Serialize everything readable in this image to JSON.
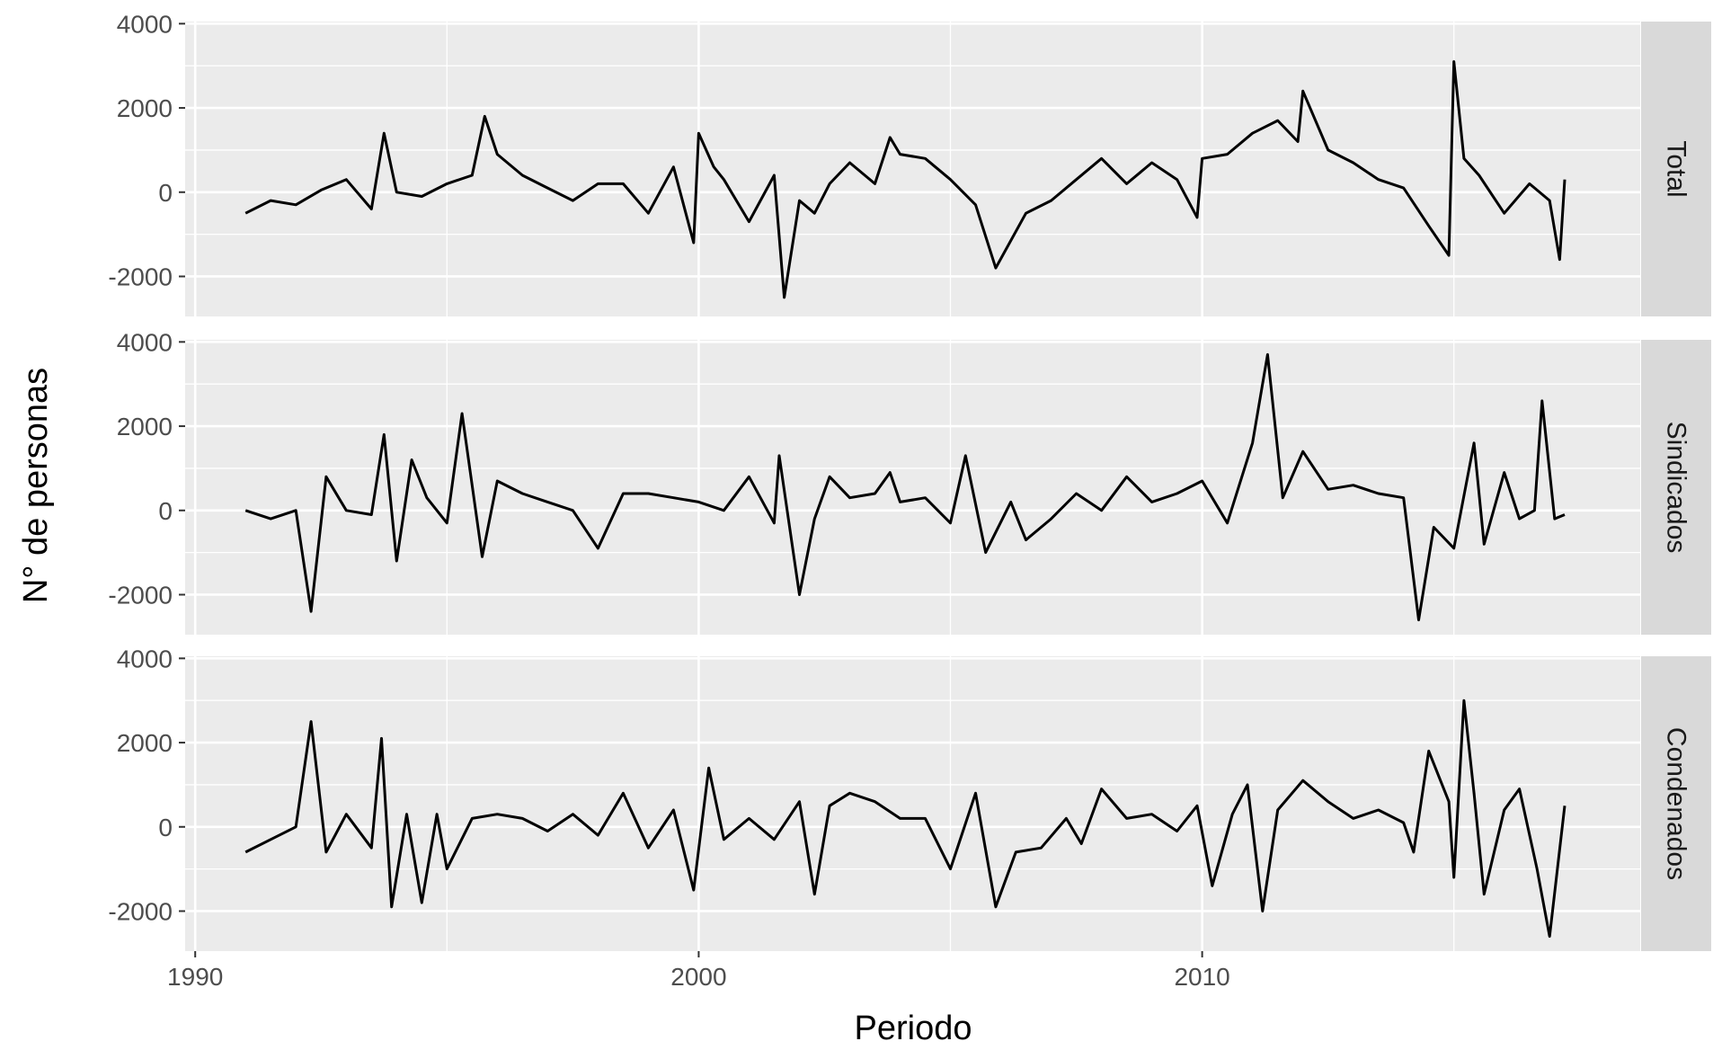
{
  "chart_data": {
    "type": "line",
    "title": "",
    "xlabel": "Periodo",
    "ylabel": "N° de personas",
    "xlim": [
      1989.8,
      2018.7
    ],
    "ylim": [
      -2950,
      4050
    ],
    "x_ticks": [
      1990,
      2000,
      2010
    ],
    "y_ticks": [
      -2000,
      0,
      2000,
      4000
    ],
    "grid": true,
    "legend": "none",
    "line_color": "#000000",
    "panel_background": "#ebebeb",
    "strip_background": "#d9d9d9",
    "panels": [
      {
        "strip_label": "Total",
        "x": [
          1991.0,
          1991.5,
          1992.0,
          1992.5,
          1993.0,
          1993.5,
          1993.75,
          1994.0,
          1994.5,
          1995.0,
          1995.5,
          1995.75,
          1996.0,
          1996.5,
          1997.0,
          1997.5,
          1998.0,
          1998.5,
          1999.0,
          1999.5,
          1999.9,
          2000.0,
          2000.3,
          2000.5,
          2001.0,
          2001.5,
          2001.7,
          2002.0,
          2002.3,
          2002.6,
          2003.0,
          2003.5,
          2003.8,
          2004.0,
          2004.5,
          2005.0,
          2005.5,
          2005.9,
          2006.5,
          2007.0,
          2007.5,
          2008.0,
          2008.5,
          2009.0,
          2009.5,
          2009.9,
          2010.0,
          2010.5,
          2011.0,
          2011.5,
          2011.9,
          2012.0,
          2012.5,
          2013.0,
          2013.5,
          2014.0,
          2014.5,
          2014.9,
          2015.0,
          2015.2,
          2015.5,
          2016.0,
          2016.5,
          2016.9,
          2017.1,
          2017.2
        ],
        "y": [
          -500,
          -200,
          -300,
          50,
          300,
          -400,
          1400,
          0,
          -100,
          200,
          400,
          1800,
          900,
          400,
          100,
          -200,
          200,
          200,
          -500,
          600,
          -1200,
          1400,
          600,
          300,
          -700,
          400,
          -2500,
          -200,
          -500,
          200,
          700,
          200,
          1300,
          900,
          800,
          300,
          -300,
          -1800,
          -500,
          -200,
          300,
          800,
          200,
          700,
          300,
          -600,
          800,
          900,
          1400,
          1700,
          1200,
          2400,
          1000,
          700,
          300,
          100,
          -800,
          -1500,
          3100,
          800,
          400,
          -500,
          200,
          -200,
          -1600,
          300
        ]
      },
      {
        "strip_label": "Sindicados",
        "x": [
          1991.0,
          1991.5,
          1992.0,
          1992.3,
          1992.6,
          1993.0,
          1993.5,
          1993.75,
          1994.0,
          1994.3,
          1994.6,
          1995.0,
          1995.3,
          1995.7,
          1996.0,
          1996.5,
          1997.0,
          1997.5,
          1998.0,
          1998.5,
          1999.0,
          1999.5,
          2000.0,
          2000.5,
          2001.0,
          2001.5,
          2001.6,
          2002.0,
          2002.3,
          2002.6,
          2003.0,
          2003.5,
          2003.8,
          2004.0,
          2004.5,
          2005.0,
          2005.3,
          2005.7,
          2006.2,
          2006.5,
          2007.0,
          2007.5,
          2008.0,
          2008.5,
          2009.0,
          2009.5,
          2010.0,
          2010.5,
          2011.0,
          2011.3,
          2011.6,
          2012.0,
          2012.5,
          2013.0,
          2013.5,
          2014.0,
          2014.3,
          2014.6,
          2015.0,
          2015.4,
          2015.6,
          2016.0,
          2016.3,
          2016.6,
          2016.75,
          2017.0,
          2017.2
        ],
        "y": [
          0,
          -200,
          0,
          -2400,
          800,
          0,
          -100,
          1800,
          -1200,
          1200,
          300,
          -300,
          2300,
          -1100,
          700,
          400,
          200,
          0,
          -900,
          400,
          400,
          300,
          200,
          0,
          800,
          -300,
          1300,
          -2000,
          -200,
          800,
          300,
          400,
          900,
          200,
          300,
          -300,
          1300,
          -1000,
          200,
          -700,
          -200,
          400,
          0,
          800,
          200,
          400,
          700,
          -300,
          1600,
          3700,
          300,
          1400,
          500,
          600,
          400,
          300,
          -2600,
          -400,
          -900,
          1600,
          -800,
          900,
          -200,
          0,
          2600,
          -200,
          -100
        ]
      },
      {
        "strip_label": "Condenados",
        "x": [
          1991.0,
          1991.5,
          1992.0,
          1992.3,
          1992.6,
          1993.0,
          1993.5,
          1993.7,
          1993.9,
          1994.2,
          1994.5,
          1994.8,
          1995.0,
          1995.5,
          1996.0,
          1996.5,
          1997.0,
          1997.5,
          1998.0,
          1998.5,
          1999.0,
          1999.5,
          1999.9,
          2000.2,
          2000.5,
          2001.0,
          2001.5,
          2002.0,
          2002.3,
          2002.6,
          2003.0,
          2003.5,
          2004.0,
          2004.5,
          2005.0,
          2005.5,
          2005.9,
          2006.3,
          2006.8,
          2007.3,
          2007.6,
          2008.0,
          2008.5,
          2009.0,
          2009.5,
          2009.9,
          2010.2,
          2010.6,
          2010.9,
          2011.2,
          2011.5,
          2012.0,
          2012.5,
          2013.0,
          2013.5,
          2014.0,
          2014.2,
          2014.5,
          2014.9,
          2015.0,
          2015.2,
          2015.4,
          2015.6,
          2016.0,
          2016.3,
          2016.65,
          2016.9,
          2017.2
        ],
        "y": [
          -600,
          -300,
          0,
          2500,
          -600,
          300,
          -500,
          2100,
          -1900,
          300,
          -1800,
          300,
          -1000,
          200,
          300,
          200,
          -100,
          300,
          -200,
          800,
          -500,
          400,
          -1500,
          1400,
          -300,
          200,
          -300,
          600,
          -1600,
          500,
          800,
          600,
          200,
          200,
          -1000,
          800,
          -1900,
          -600,
          -500,
          200,
          -400,
          900,
          200,
          300,
          -100,
          500,
          -1400,
          300,
          1000,
          -2000,
          400,
          1100,
          600,
          200,
          400,
          100,
          -600,
          1800,
          600,
          -1200,
          3000,
          800,
          -1600,
          400,
          900,
          -1000,
          -2600,
          500
        ]
      }
    ]
  }
}
